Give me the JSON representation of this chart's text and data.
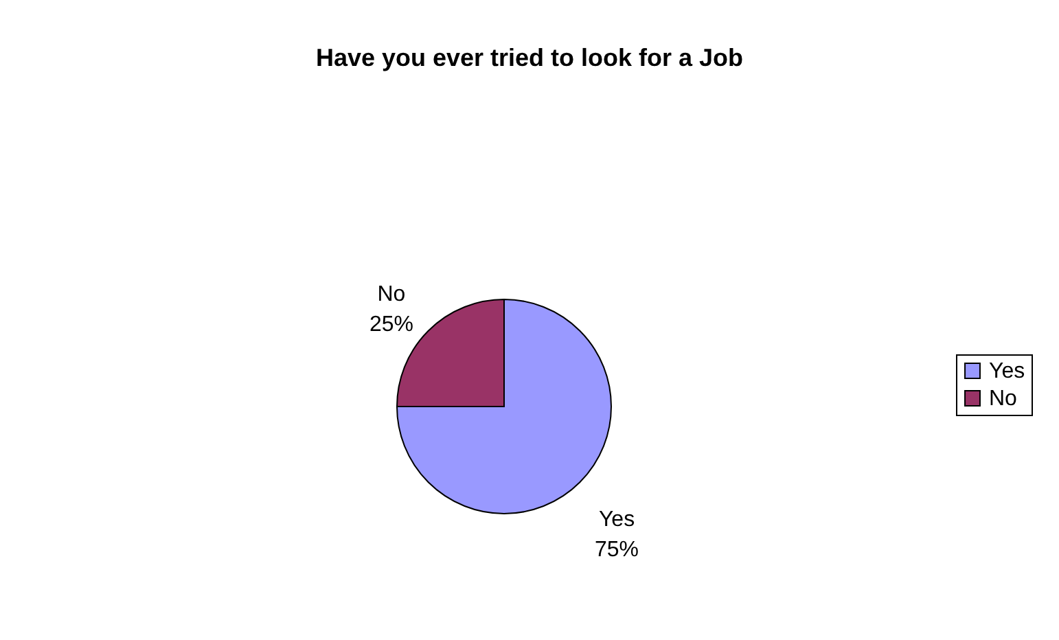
{
  "chart_data": {
    "type": "pie",
    "title": "Have you ever tried to look for a Job",
    "categories": [
      "Yes",
      "No"
    ],
    "values": [
      75,
      25
    ],
    "value_labels": [
      "75%",
      "25%"
    ],
    "colors": [
      "#9999ff",
      "#993366"
    ],
    "legend": "right"
  }
}
